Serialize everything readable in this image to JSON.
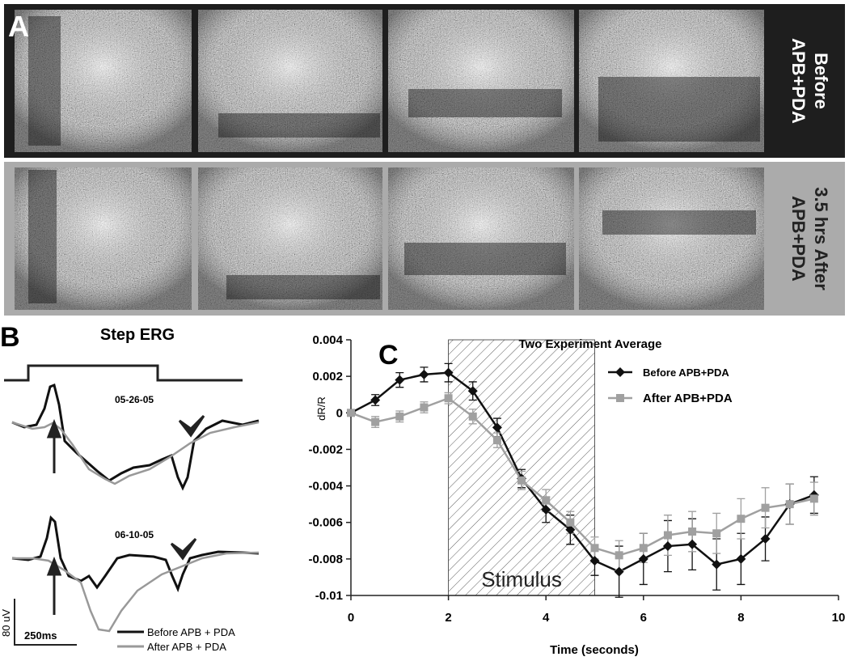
{
  "panel_a": {
    "label": "A",
    "rows": [
      {
        "label_lines": [
          "Before",
          "APB+PDA"
        ]
      },
      {
        "label_lines": [
          "3.5 hrs After",
          "APB+PDA"
        ]
      }
    ]
  },
  "panel_b": {
    "label": "B",
    "title": "Step ERG",
    "dates": [
      "05-26-05",
      "06-10-05"
    ],
    "legend": [
      "Before APB + PDA",
      "After APB + PDA"
    ],
    "scale": {
      "amplitude": "80 uV",
      "time": "250ms"
    }
  },
  "chart_data": {
    "type": "line",
    "panel_label": "C",
    "title": "Two Experiment Average",
    "x_label": "Time (seconds)",
    "y_label": "dR/R",
    "x": [
      0,
      0.5,
      1,
      1.5,
      2,
      2.5,
      3,
      3.5,
      4,
      4.5,
      5,
      5.5,
      6,
      6.5,
      7,
      7.5,
      8,
      8.5,
      9,
      9.5
    ],
    "series": [
      {
        "name": "Before APB+PDA",
        "color": "#111111",
        "marker": "diamond",
        "values": [
          0,
          0.0007,
          0.0018,
          0.0021,
          0.0022,
          0.0012,
          -0.0008,
          -0.0036,
          -0.0053,
          -0.0064,
          -0.0081,
          -0.0087,
          -0.008,
          -0.0073,
          -0.0072,
          -0.0083,
          -0.008,
          -0.0069,
          -0.005,
          -0.0045
        ],
        "errors": [
          0,
          0.0003,
          0.0004,
          0.0004,
          0.0005,
          0.0005,
          0.0005,
          0.0005,
          0.0007,
          0.0008,
          0.0008,
          0.0014,
          0.0014,
          0.0014,
          0.0014,
          0.0014,
          0.0014,
          0.0012,
          0.0011,
          0.001
        ]
      },
      {
        "name": "After APB+PDA",
        "color": "#a0a0a0",
        "marker": "square",
        "values": [
          0,
          -0.0005,
          -0.0002,
          0.0003,
          0.0008,
          -0.0002,
          -0.0015,
          -0.0037,
          -0.0048,
          -0.006,
          -0.0074,
          -0.0078,
          -0.0074,
          -0.0067,
          -0.0065,
          -0.0066,
          -0.0058,
          -0.0052,
          -0.005,
          -0.0047
        ],
        "errors": [
          0,
          0.0003,
          0.0003,
          0.0003,
          0.0003,
          0.0004,
          0.0004,
          0.0005,
          0.0006,
          0.0006,
          0.0006,
          0.0008,
          0.0008,
          0.0011,
          0.0011,
          0.0011,
          0.0011,
          0.0011,
          0.0011,
          0.0009
        ]
      }
    ],
    "stimulus": {
      "label": "Stimulus",
      "start": 2,
      "end": 5
    },
    "xlim": [
      0,
      10
    ],
    "xticks": [
      0,
      2,
      4,
      6,
      8,
      10
    ],
    "ylim": [
      -0.01,
      0.004
    ],
    "yticks": [
      -0.01,
      -0.008,
      -0.006,
      -0.004,
      -0.002,
      0,
      0.002,
      0.004
    ]
  }
}
